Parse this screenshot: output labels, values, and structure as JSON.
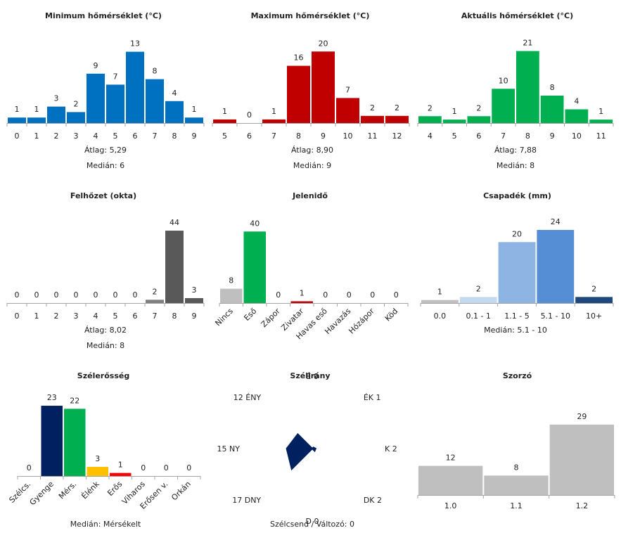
{
  "colors": {
    "blue": "#0070c0",
    "red": "#c00000",
    "green": "#00b050",
    "gray_dark": "#595959",
    "gray_mid": "#808080",
    "gray_light": "#bfbfbf",
    "navy": "#002060",
    "amber": "#ffc000",
    "bright_red": "#ff0000",
    "precip_light": "#c5d9f1",
    "precip_mid": "#8db4e2",
    "precip_main": "#558ed5",
    "precip_dark": "#1f497d",
    "axis": "#a6a6a6"
  },
  "stat_labels": {
    "avg": "Átlag:",
    "median": "Medián:"
  },
  "chart_data": [
    {
      "id": "min-temp",
      "type": "bar",
      "title": "Minimum hőmérséklet (°C)",
      "categories": [
        "0",
        "1",
        "2",
        "3",
        "4",
        "5",
        "6",
        "7",
        "8",
        "9"
      ],
      "values": [
        1,
        1,
        3,
        2,
        9,
        7,
        13,
        8,
        4,
        1
      ],
      "color": "blue",
      "ylim": [
        0,
        15
      ],
      "avg": "5,29",
      "median": "6"
    },
    {
      "id": "max-temp",
      "type": "bar",
      "title": "Maximum hőmérséklet (°C)",
      "categories": [
        "5",
        "6",
        "7",
        "8",
        "9",
        "10",
        "11",
        "12"
      ],
      "values": [
        1,
        0,
        1,
        16,
        20,
        7,
        2,
        2
      ],
      "color": "red",
      "ylim": [
        0,
        23
      ],
      "avg": "8,90",
      "median": "9"
    },
    {
      "id": "cur-temp",
      "type": "bar",
      "title": "Aktuális hőmérséklet (°C)",
      "categories": [
        "4",
        "5",
        "6",
        "7",
        "8",
        "9",
        "10",
        "11"
      ],
      "values": [
        2,
        1,
        2,
        10,
        21,
        8,
        4,
        1
      ],
      "color": "green",
      "ylim": [
        0,
        24
      ],
      "avg": "7,88",
      "median": "8"
    },
    {
      "id": "cloud",
      "type": "bar",
      "title": "Felhőzet (okta)",
      "categories": [
        "0",
        "1",
        "2",
        "3",
        "4",
        "5",
        "6",
        "7",
        "8",
        "9"
      ],
      "values": [
        0,
        0,
        0,
        0,
        0,
        0,
        0,
        2,
        44,
        3
      ],
      "colors": [
        "gray_mid",
        "gray_mid",
        "gray_mid",
        "gray_mid",
        "gray_mid",
        "gray_mid",
        "gray_mid",
        "gray_mid",
        "gray_dark",
        "gray_dark"
      ],
      "ylim": [
        0,
        50
      ],
      "avg": "8,02",
      "median": "8"
    },
    {
      "id": "weather",
      "type": "bar",
      "title": "Jelenidő",
      "categories": [
        "Nincs",
        "Eső",
        "Zápor",
        "Zivatar",
        "Havas eső",
        "Havazás",
        "Hózápor",
        "Köd"
      ],
      "values": [
        8,
        40,
        0,
        1,
        0,
        0,
        0,
        0
      ],
      "colors": [
        "gray_light",
        "green",
        "gray_light",
        "red",
        "gray_light",
        "gray_light",
        "gray_light",
        "gray_light"
      ],
      "ylim": [
        0,
        46
      ],
      "rotated": true
    },
    {
      "id": "precip",
      "type": "bar",
      "title": "Csapadék (mm)",
      "categories": [
        "0.0",
        "0.1 - 1",
        "1.1 - 5",
        "5.1 - 10",
        "10+"
      ],
      "values": [
        1,
        2,
        20,
        24,
        2
      ],
      "colors": [
        "gray_light",
        "precip_light",
        "precip_mid",
        "precip_main",
        "precip_dark"
      ],
      "ylim": [
        0,
        27
      ],
      "median": "5.1 - 10"
    },
    {
      "id": "wind-strength",
      "type": "bar",
      "title": "Szélerősség",
      "categories": [
        "Szélcs.",
        "Gyenge",
        "Mérs.",
        "Élénk",
        "Erős",
        "Viharos",
        "Erősen v.",
        "Orkán"
      ],
      "values": [
        0,
        23,
        22,
        3,
        1,
        0,
        0,
        0
      ],
      "colors": [
        "navy",
        "navy",
        "green",
        "amber",
        "bright_red",
        "gray_light",
        "gray_light",
        "gray_light"
      ],
      "ylim": [
        0,
        26
      ],
      "rotated": true,
      "median": "Mérsékelt"
    },
    {
      "id": "wind-dir",
      "type": "radar",
      "title": "Szélirány",
      "directions": [
        {
          "label": "É",
          "value": 0
        },
        {
          "label": "ÉK",
          "value": 1
        },
        {
          "label": "K",
          "value": 2
        },
        {
          "label": "DK",
          "value": 2
        },
        {
          "label": "D",
          "value": 0
        },
        {
          "label": "DNY",
          "value": 17
        },
        {
          "label": "NY",
          "value": 15
        },
        {
          "label": "ÉNY",
          "value": 12
        }
      ],
      "max": 40,
      "color": "navy",
      "footer_label": "Szélcsend / Változó:",
      "footer_value": "0"
    },
    {
      "id": "multiplier",
      "type": "bar",
      "title": "Szorzó",
      "categories": [
        "1.0",
        "1.1",
        "1.2"
      ],
      "values": [
        12,
        8,
        29
      ],
      "color": "gray_light",
      "ylim": [
        0,
        33
      ]
    }
  ]
}
